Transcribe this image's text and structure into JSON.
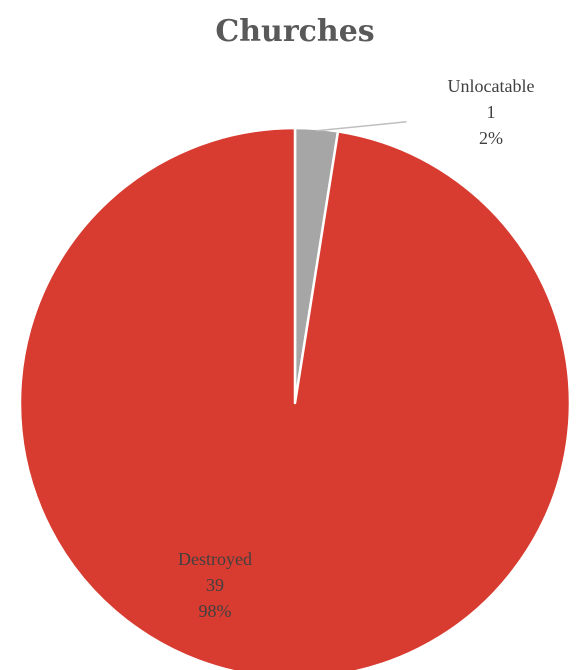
{
  "chart_data": {
    "type": "pie",
    "title": "Churches",
    "slices": [
      {
        "label": "Unlocatable",
        "value": 1,
        "percent_label": "2%",
        "color": "#a6a6a6"
      },
      {
        "label": "Destroyed",
        "value": 39,
        "percent_label": "98%",
        "color": "#d83b30"
      }
    ],
    "start_angle_deg": 0,
    "direction": "clockwise",
    "label_color": "#404040",
    "leader_line_color": "#bfbfbf"
  }
}
